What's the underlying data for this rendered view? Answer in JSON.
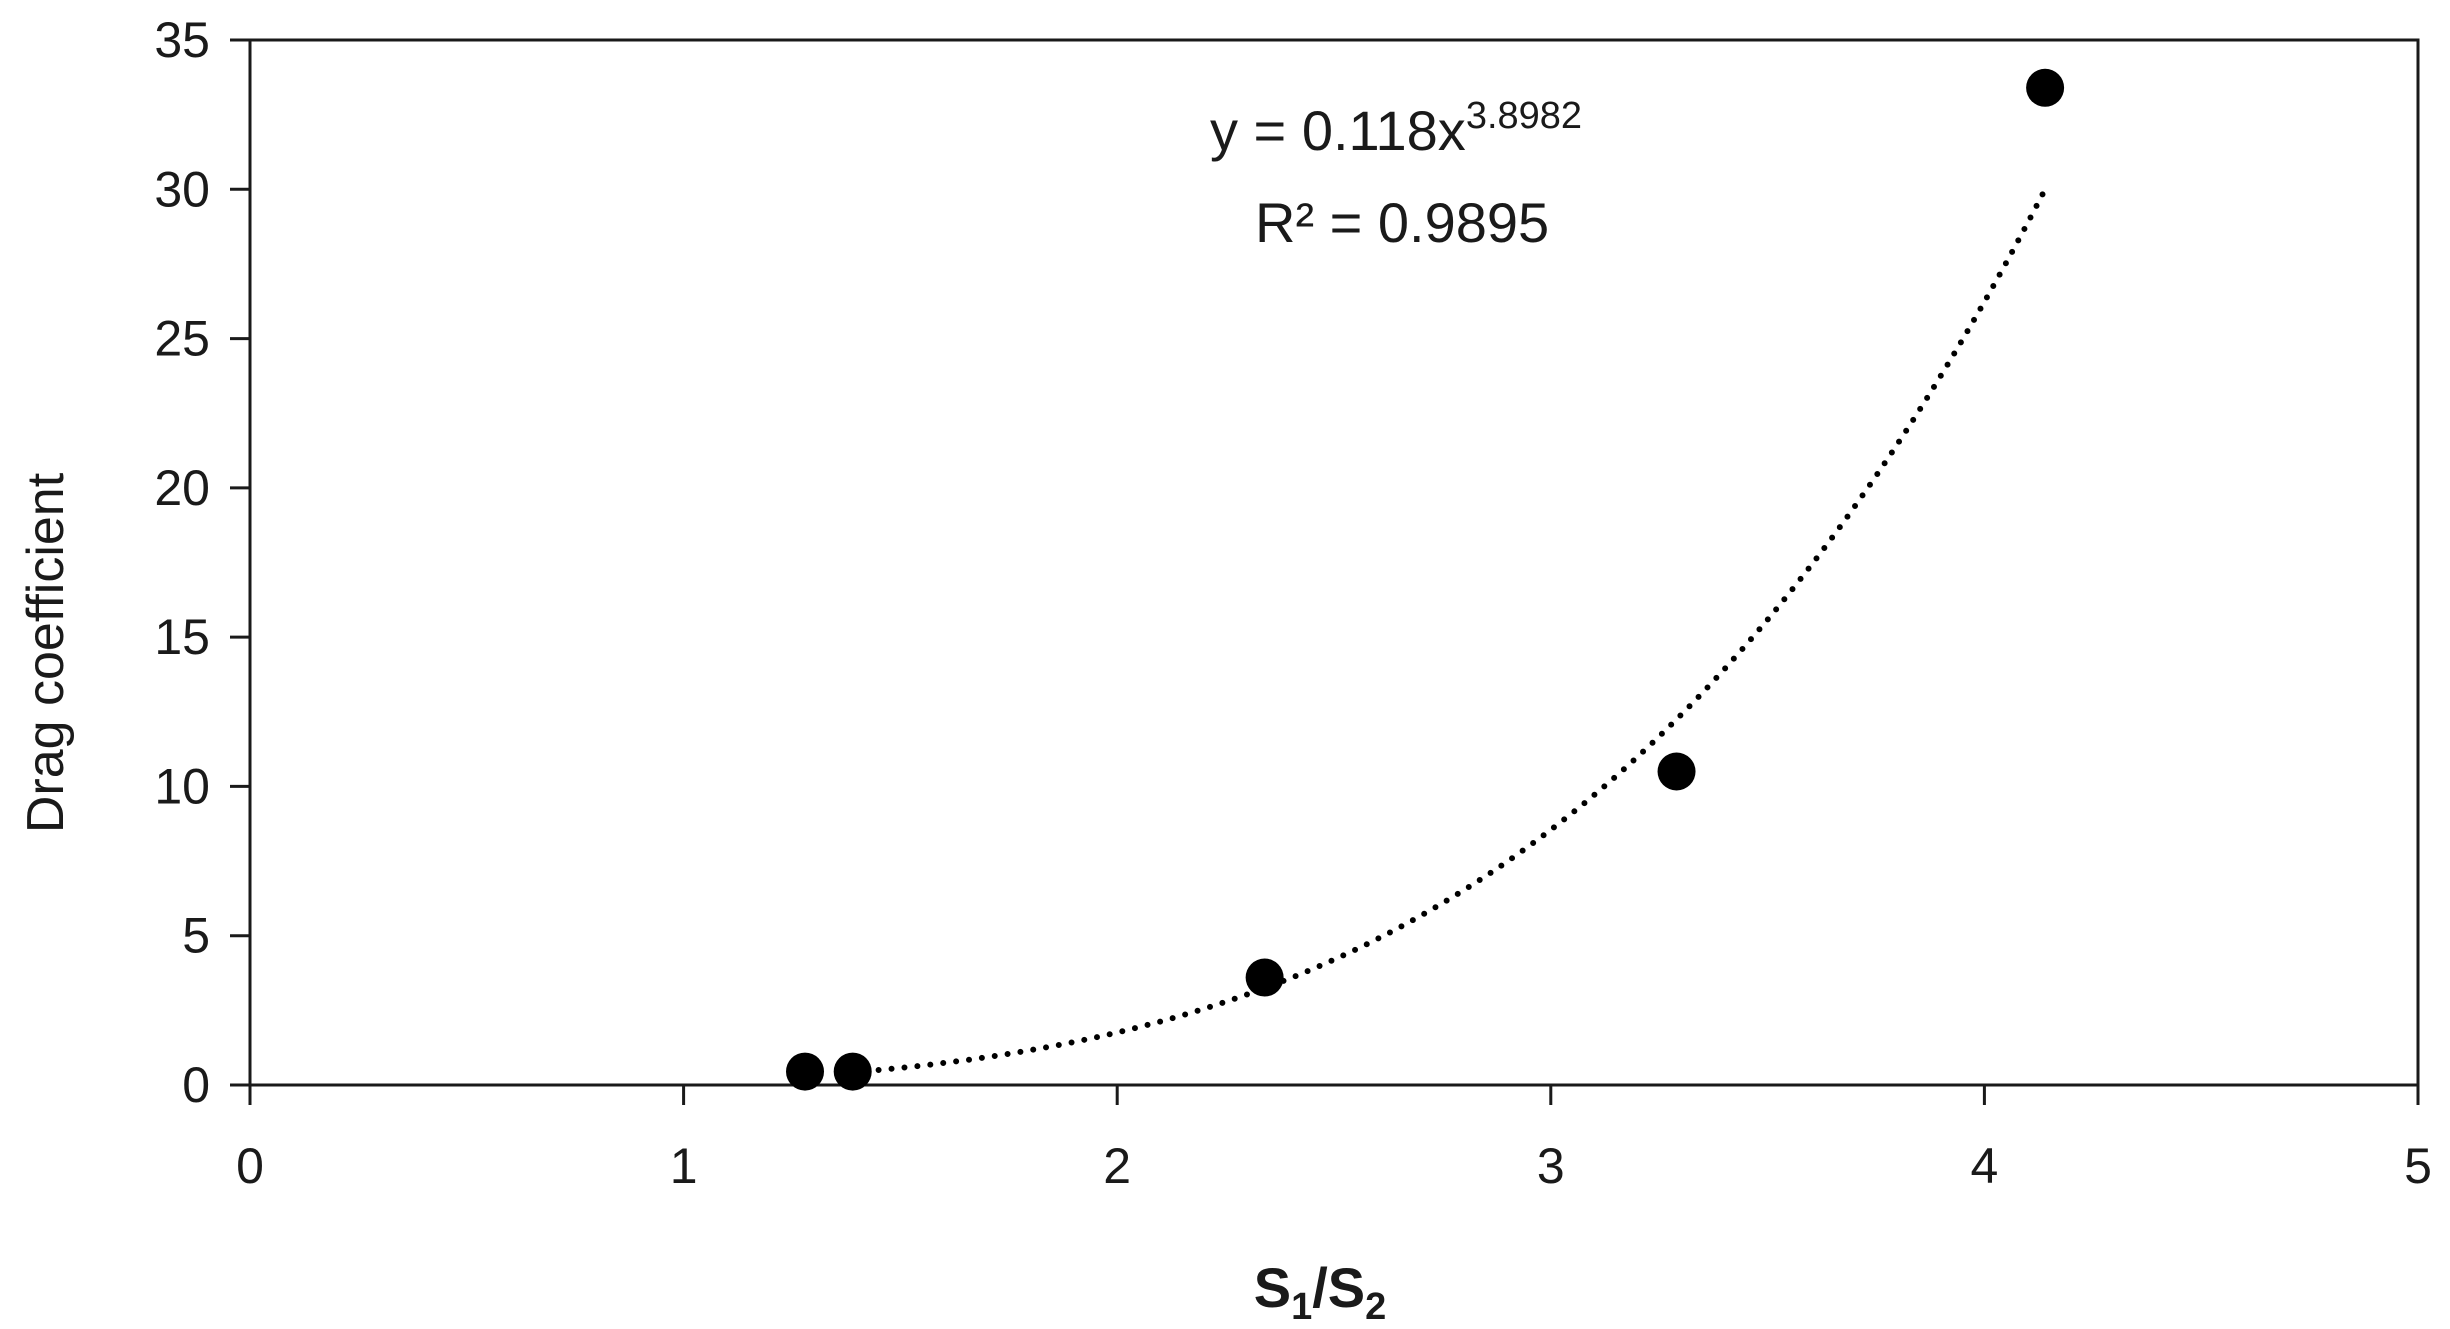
{
  "chart_data": {
    "type": "scatter",
    "title": "",
    "xlabel": {
      "base_left": "S",
      "sub_left": "1",
      "separator": "/",
      "base_right": "S",
      "sub_right": "2"
    },
    "ylabel": "Drag coefficient",
    "xlim": [
      0,
      5
    ],
    "ylim": [
      0,
      35
    ],
    "xticks": [
      0,
      1,
      2,
      3,
      4,
      5
    ],
    "yticks": [
      0,
      5,
      10,
      15,
      20,
      25,
      30,
      35
    ],
    "grid": false,
    "legend": "none",
    "series": [
      {
        "points": [
          {
            "x": 1.28,
            "y": 0.45
          },
          {
            "x": 1.39,
            "y": 0.45
          },
          {
            "x": 2.34,
            "y": 3.6
          },
          {
            "x": 3.29,
            "y": 10.5
          },
          {
            "x": 4.14,
            "y": 33.4
          }
        ],
        "marker_color": "#000000"
      }
    ],
    "trendline": {
      "type": "power",
      "coefficient": 0.118,
      "exponent": 3.8982,
      "x_range": [
        1.39,
        4.14
      ],
      "style": "dotted",
      "color": "#000000"
    },
    "annotation": {
      "equation_base": "y = 0.118x",
      "equation_exponent": "3.8982",
      "r_squared_label": "R² = 0.9895"
    }
  }
}
